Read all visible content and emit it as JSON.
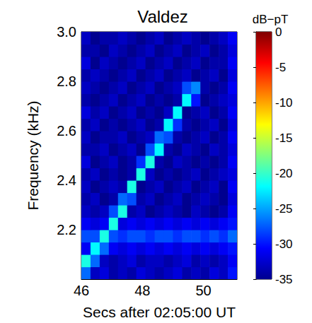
{
  "chart_data": {
    "type": "heatmap",
    "title": "Valdez",
    "x_label": "Secs after 02:05:00 UT",
    "y_label": "Frequency (kHz)",
    "xlim": [
      46,
      51.1
    ],
    "xticks": [
      46,
      48,
      50
    ],
    "ylim": [
      2,
      3
    ],
    "yticks": [
      2.2,
      2.4,
      2.6,
      2.8,
      {
        "value": 3,
        "label": "3.0"
      }
    ],
    "x_bins": [
      46,
      46.3,
      46.6,
      46.9,
      47.2,
      47.5,
      47.8,
      48.1,
      48.4,
      48.7,
      49,
      49.3,
      49.6,
      49.9,
      50.2,
      50.5,
      50.8,
      51.1
    ],
    "y_bins": [
      2,
      2.05,
      2.1,
      2.15,
      2.2,
      2.25,
      2.3,
      2.35,
      2.4,
      2.45,
      2.5,
      2.55,
      2.6,
      2.65,
      2.7,
      2.75,
      2.8,
      2.85,
      2.9,
      2.95,
      3
    ],
    "cells": [
      [
        -27,
        -33,
        -32,
        -34,
        -33,
        -34,
        -32,
        -33,
        -34,
        -33,
        -32,
        -34,
        -33,
        -34,
        -32,
        -33,
        -30
      ],
      [
        -21,
        -27,
        -33,
        -34,
        -33,
        -32,
        -34,
        -33,
        -33,
        -34,
        -33,
        -32,
        -34,
        -33,
        -34,
        -33,
        -31
      ],
      [
        -31,
        -22,
        -27,
        -31,
        -32,
        -31,
        -32,
        -31,
        -32,
        -31,
        -32,
        -31,
        -32,
        -31,
        -32,
        -31,
        -30
      ],
      [
        -28,
        -28,
        -21,
        -28,
        -29,
        -28,
        -28,
        -29,
        -28,
        -28,
        -29,
        -28,
        -28,
        -29,
        -28,
        -29,
        -27
      ],
      [
        -31,
        -32,
        -31,
        -21,
        -32,
        -31,
        -32,
        -31,
        -32,
        -31,
        -32,
        -31,
        -32,
        -31,
        -32,
        -31,
        -30
      ],
      [
        -33,
        -34,
        -33,
        -28,
        -21,
        -34,
        -33,
        -35,
        -34,
        -33,
        -34,
        -35,
        -33,
        -34,
        -35,
        -34,
        -31
      ],
      [
        -34,
        -33,
        -35,
        -34,
        -27,
        -28,
        -34,
        -33,
        -35,
        -34,
        -33,
        -35,
        -34,
        -33,
        -34,
        -35,
        -32
      ],
      [
        -33,
        -35,
        -34,
        -33,
        -34,
        -21,
        -35,
        -34,
        -33,
        -35,
        -34,
        -33,
        -35,
        -34,
        -33,
        -35,
        -31
      ],
      [
        -34,
        -33,
        -35,
        -34,
        -35,
        -34,
        -21,
        -33,
        -35,
        -34,
        -35,
        -34,
        -33,
        -35,
        -34,
        -33,
        -32
      ],
      [
        -32,
        -35,
        -34,
        -33,
        -35,
        -34,
        -29,
        -21,
        -34,
        -35,
        -33,
        -34,
        -35,
        -34,
        -35,
        -34,
        -31
      ],
      [
        -34,
        -34,
        -33,
        -35,
        -34,
        -33,
        -35,
        -28,
        -22,
        -34,
        -35,
        -33,
        -34,
        -35,
        -33,
        -34,
        -32
      ],
      [
        -33,
        -35,
        -34,
        -34,
        -33,
        -35,
        -34,
        -33,
        -27,
        -28,
        -34,
        -35,
        -34,
        -33,
        -35,
        -34,
        -31
      ],
      [
        -34,
        -33,
        -35,
        -34,
        -35,
        -34,
        -33,
        -35,
        -34,
        -22,
        -29,
        -34,
        -35,
        -34,
        -33,
        -35,
        -32
      ],
      [
        -32,
        -34,
        -33,
        -35,
        -34,
        -33,
        -35,
        -34,
        -35,
        -33,
        -22,
        -35,
        -34,
        -33,
        -35,
        -34,
        -31
      ],
      [
        -34,
        -35,
        -34,
        -33,
        -35,
        -34,
        -33,
        -35,
        -34,
        -35,
        -34,
        -22,
        -30,
        -35,
        -34,
        -33,
        -32
      ],
      [
        -33,
        -34,
        -35,
        -34,
        -33,
        -35,
        -34,
        -33,
        -35,
        -34,
        -33,
        -28,
        -26,
        -34,
        -35,
        -34,
        -31
      ],
      [
        -34,
        -33,
        -34,
        -35,
        -34,
        -33,
        -35,
        -34,
        -33,
        -35,
        -34,
        -33,
        -35,
        -34,
        -33,
        -35,
        -32
      ],
      [
        -32,
        -35,
        -33,
        -34,
        -35,
        -34,
        -33,
        -35,
        -34,
        -33,
        -35,
        -34,
        -33,
        -35,
        -34,
        -34,
        -31
      ],
      [
        -34,
        -34,
        -35,
        -33,
        -34,
        -35,
        -34,
        -33,
        -35,
        -34,
        -33,
        -35,
        -34,
        -33,
        -35,
        -34,
        -32
      ],
      [
        -33,
        -35,
        -34,
        -34,
        -33,
        -34,
        -35,
        -34,
        -33,
        -35,
        -34,
        -33,
        -34,
        -35,
        -34,
        -33,
        -31
      ]
    ],
    "colorbar": {
      "label": "dB−pT",
      "range": [
        -35,
        0
      ],
      "ticks": [
        0,
        -5,
        -10,
        -15,
        -20,
        -25,
        -30,
        -35
      ]
    }
  }
}
